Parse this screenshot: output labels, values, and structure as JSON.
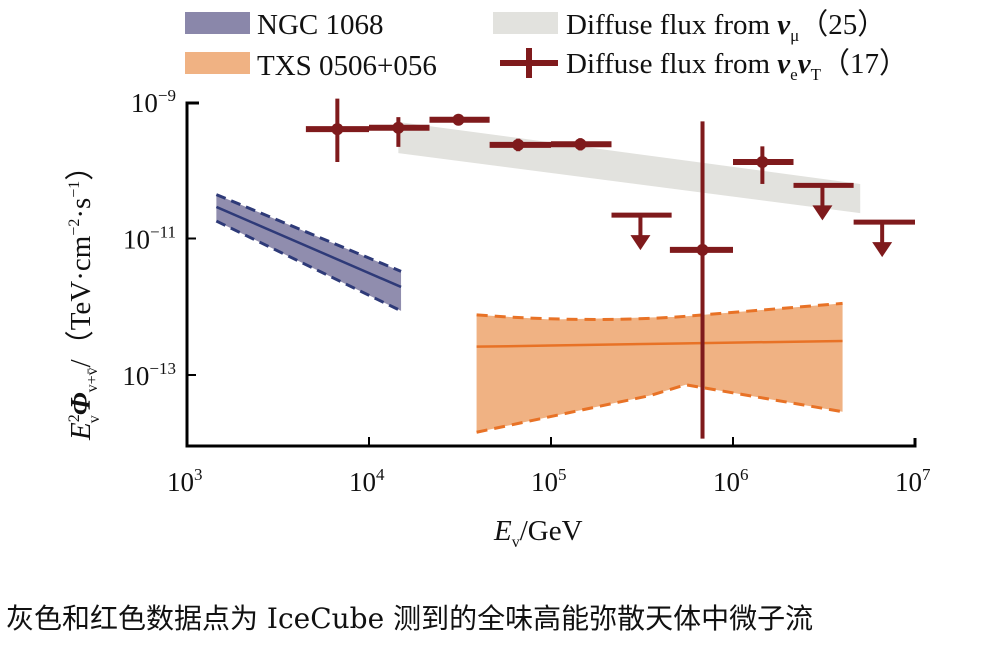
{
  "chart_data": {
    "type": "scatter",
    "title": "",
    "xlabel": "E_v/GeV",
    "ylabel": "E_v^2 Φ_{v+v̄} / (TeV·cm^-2·s^-1)",
    "xscale": "log",
    "yscale": "log",
    "xlim": [
      1000,
      10000000
    ],
    "ylim": [
      9.1e-15,
      1e-09
    ],
    "grid": false,
    "legend_position": "top",
    "x_ticks": [
      {
        "base": "10",
        "exp": "3",
        "value": 1000
      },
      {
        "base": "10",
        "exp": "4",
        "value": 10000
      },
      {
        "base": "10",
        "exp": "5",
        "value": 100000
      },
      {
        "base": "10",
        "exp": "6",
        "value": 1000000
      },
      {
        "base": "10",
        "exp": "7",
        "value": 10000000
      }
    ],
    "y_ticks": [
      {
        "base": "10",
        "exp": "−9",
        "value": 1e-09
      },
      {
        "base": "10",
        "exp": "−11",
        "value": 1e-11
      },
      {
        "base": "10",
        "exp": "−13",
        "value": 1e-13
      }
    ],
    "x_minor_ticks": [
      10000,
      100000,
      1000000
    ],
    "legend": [
      {
        "label": "NGC 1068",
        "kind": "band",
        "color": "#8a87aa"
      },
      {
        "label": "TXS 0506+056",
        "kind": "band",
        "color": "#f0b283"
      },
      {
        "label_parts": [
          "Diffuse flux from ",
          "v",
          "μ",
          "（25）"
        ],
        "kind": "band",
        "color": "#e2e2de"
      },
      {
        "label_parts": [
          "Diffuse flux from ",
          "v",
          "e",
          "v",
          "T",
          "（17）"
        ],
        "kind": "errorbar",
        "color": "#7f1a1c"
      }
    ],
    "series": [
      {
        "name": "NGC 1068",
        "type": "band",
        "fill": "#8a87aa",
        "line_color": "#2e3a78",
        "x": [
          1450,
          15000
        ],
        "center": [
          2.9e-11,
          1.95e-12
        ],
        "upper": [
          4.4e-11,
          3.3e-12
        ],
        "lower": [
          1.8e-11,
          8.7e-13
        ]
      },
      {
        "name": "TXS 0506+056",
        "type": "band",
        "fill": "#f0b283",
        "line_color": "#e87226",
        "x": [
          39000,
          100000,
          500000,
          4000000
        ],
        "center": [
          2.6e-13,
          2.7e-13,
          2.9e-13,
          3.15e-13
        ],
        "upper": [
          7.6e-13,
          6.5e-13,
          7.1e-13,
          1.12e-12
        ],
        "lower": [
          1.45e-14,
          3.3e-14,
          6.6e-14,
          2.9e-14
        ],
        "lower_x": [
          39000,
          350000,
          550000,
          4000000
        ],
        "lower_vals": [
          1.45e-14,
          5e-14,
          7.2e-14,
          2.9e-14
        ]
      },
      {
        "name": "Diffuse flux from v_mu (25)",
        "type": "band",
        "fill": "#e2e2de",
        "x": [
          14500,
          5000000
        ],
        "upper": [
          5.1e-10,
          6.3e-11
        ],
        "lower": [
          1.78e-10,
          2.35e-11
        ]
      },
      {
        "name": "Diffuse flux from v_e v_T (17)",
        "type": "errorbar",
        "color": "#7f1a1c",
        "points": [
          {
            "x": 6700,
            "x_lo": 4500,
            "x_hi": 10000,
            "y": 4e-10,
            "y_lo": 1.32e-10,
            "y_hi": 1.12e-09
          },
          {
            "x": 14500,
            "x_lo": 10000,
            "x_hi": 21500,
            "y": 4.2e-10,
            "y_lo": 2.2e-10,
            "y_hi": 6e-10
          },
          {
            "x": 31000,
            "x_lo": 21500,
            "x_hi": 46000,
            "y": 5.5e-10,
            "y_lo": 5e-10,
            "y_hi": 6e-10
          },
          {
            "x": 66000,
            "x_lo": 46000,
            "x_hi": 100000,
            "y": 2.35e-10,
            "y_lo": 1.9e-10,
            "y_hi": 2.9e-10
          },
          {
            "x": 145000,
            "x_lo": 100000,
            "x_hi": 215000,
            "y": 2.4e-10,
            "y_lo": 1.95e-10,
            "y_hi": 2.95e-10
          },
          {
            "x": 680000,
            "x_lo": 450000,
            "x_hi": 1000000,
            "y": 6.8e-12,
            "y_lo": 1.17e-14,
            "y_hi": 5.2e-10
          },
          {
            "x": 1450000,
            "x_lo": 1000000,
            "x_hi": 2150000,
            "y": 1.32e-10,
            "y_lo": 6.3e-11,
            "y_hi": 2.24e-10
          }
        ],
        "upper_limits": [
          {
            "x": 310000,
            "x_lo": 215000,
            "x_hi": 460000,
            "y": 2.2e-11
          },
          {
            "x": 3100000,
            "x_lo": 2150000,
            "x_hi": 4600000,
            "y": 6e-11
          },
          {
            "x": 6600000,
            "x_lo": 4600000,
            "x_hi": 10000000,
            "y": 1.74e-11
          }
        ]
      }
    ]
  },
  "legend": {
    "ngc": "NGC 1068",
    "txs": "TXS 0506+056",
    "diffuse_mu_prefix": "Diffuse flux from ",
    "diffuse_mu_nu": "v",
    "diffuse_mu_sub": "μ",
    "diffuse_mu_suffix": "（25）",
    "diffuse_et_prefix": "Diffuse flux from ",
    "diffuse_et_nu1": "v",
    "diffuse_et_sub1": "e",
    "diffuse_et_nu2": "v",
    "diffuse_et_sub2": "T",
    "diffuse_et_suffix": "（17）"
  },
  "axes": {
    "x_title_main": "E",
    "x_title_sub": "v",
    "x_title_unit": "/GeV",
    "y_title_E": "E",
    "y_title_E_sup": "2",
    "y_title_E_sub": "v",
    "y_title_phi": "Φ",
    "y_title_phi_sub": "v+v̄",
    "y_title_unit": "/（TeV·cm",
    "y_title_unit_exp1": "−2",
    "y_title_unit_mid": "·s",
    "y_title_unit_exp2": "−1",
    "y_title_unit_end": "）"
  },
  "caption": "灰色和红色数据点为 IceCube 测到的全味高能弥散天体中微子流"
}
